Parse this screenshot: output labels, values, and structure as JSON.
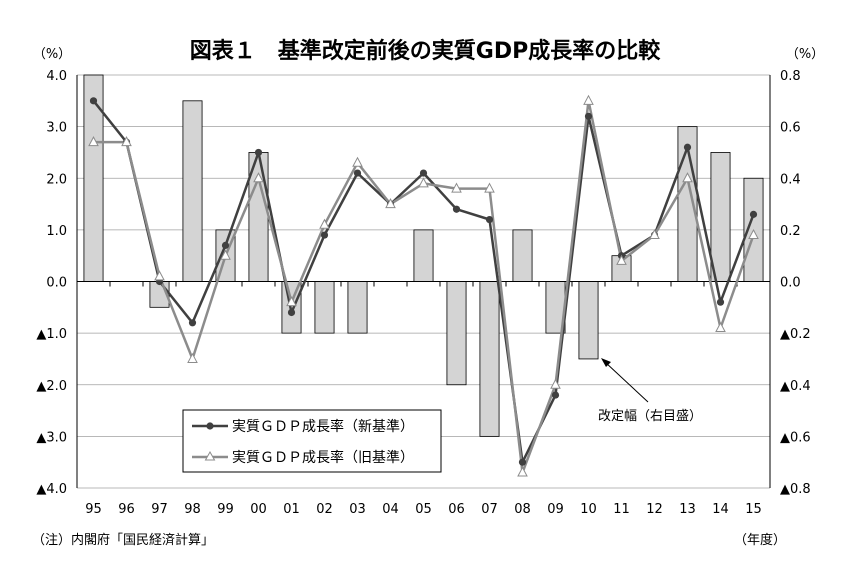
{
  "chart_data": {
    "type": "bar+line",
    "title": "図表１　基準改定前後の実質GDP成長率の比較",
    "left_unit": "（%）",
    "right_unit": "（%）",
    "x_unit": "（年度）",
    "note": "（注）内閣府「国民経済計算」",
    "annotation": "改定幅（右目盛）",
    "categories": [
      "95",
      "96",
      "97",
      "98",
      "99",
      "00",
      "01",
      "02",
      "03",
      "04",
      "05",
      "06",
      "07",
      "08",
      "09",
      "10",
      "11",
      "12",
      "13",
      "14",
      "15"
    ],
    "left_axis": {
      "ylim": [
        -4,
        4
      ],
      "tick_values": [
        4,
        3,
        2,
        1,
        0,
        -1,
        -2,
        -3,
        -4
      ],
      "tick_labels": [
        "4.0",
        "3.0",
        "2.0",
        "1.0",
        "0.0",
        "▲1.0",
        "▲2.0",
        "▲3.0",
        "▲4.0"
      ]
    },
    "right_axis": {
      "ylim": [
        -0.8,
        0.8
      ],
      "tick_values": [
        0.8,
        0.6,
        0.4,
        0.2,
        0.0,
        -0.2,
        -0.4,
        -0.6,
        -0.8
      ],
      "tick_labels": [
        "0.8",
        "0.6",
        "0.4",
        "0.2",
        "0.0",
        "▲0.2",
        "▲0.4",
        "▲0.6",
        "▲0.8"
      ]
    },
    "bars": {
      "name": "改定幅（右目盛）",
      "axis": "right",
      "color": "#d4d4d4",
      "values": [
        0.8,
        0.0,
        -0.1,
        0.7,
        0.2,
        0.5,
        -0.2,
        -0.2,
        -0.2,
        0.0,
        0.2,
        -0.4,
        -0.6,
        0.2,
        -0.2,
        -0.3,
        0.1,
        0.0,
        0.6,
        0.5,
        0.4
      ]
    },
    "series": [
      {
        "name": "実質ＧＤＰ成長率（新基準）",
        "axis": "left",
        "color": "#404040",
        "marker": "circle",
        "values": [
          3.5,
          2.7,
          0.0,
          -0.8,
          0.7,
          2.5,
          -0.6,
          0.9,
          2.1,
          1.5,
          2.1,
          1.4,
          1.2,
          -3.5,
          -2.2,
          3.2,
          0.5,
          0.9,
          2.6,
          -0.4,
          1.3
        ]
      },
      {
        "name": "実質ＧＤＰ成長率（旧基準）",
        "axis": "left",
        "color": "#8c8c8c",
        "marker": "triangle",
        "values": [
          2.7,
          2.7,
          0.1,
          -1.5,
          0.5,
          2.0,
          -0.4,
          1.1,
          2.3,
          1.5,
          1.9,
          1.8,
          1.8,
          -3.7,
          -2.0,
          3.5,
          0.4,
          0.9,
          2.0,
          -0.9,
          0.9
        ]
      }
    ],
    "grid": "horizontal",
    "legend_position": "bottom-left"
  }
}
